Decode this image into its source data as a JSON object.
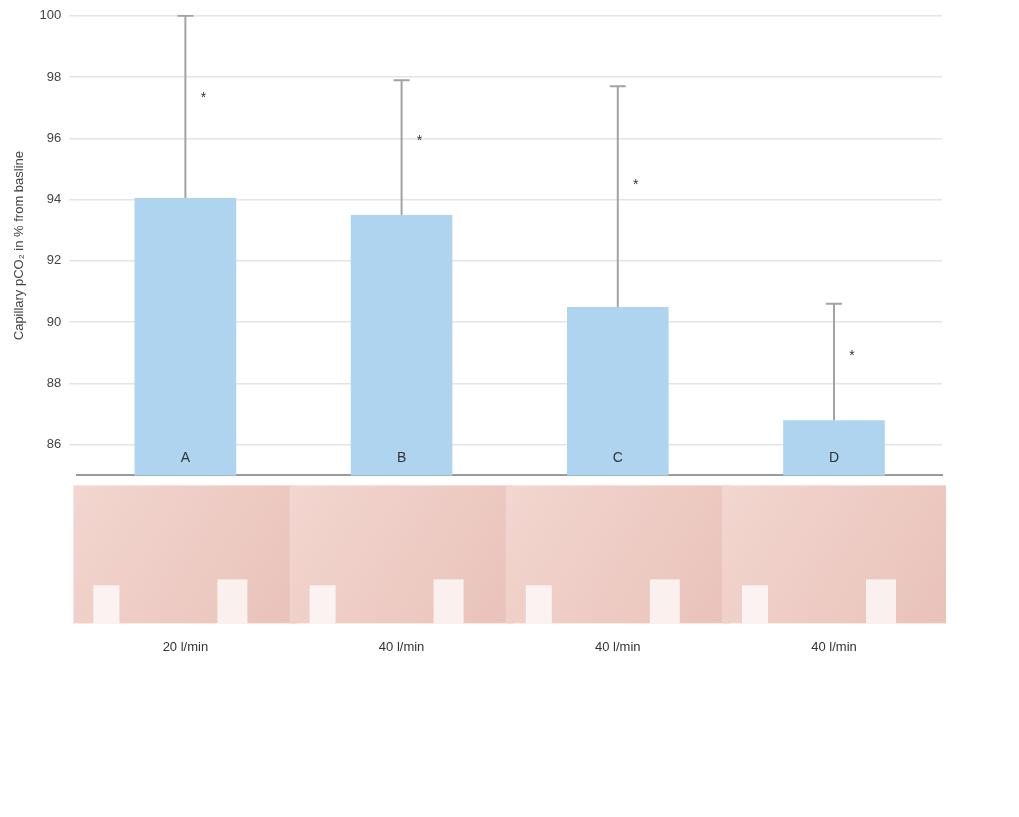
{
  "chart_data": {
    "type": "bar",
    "y_label": "Capillary pCO₂ in % from basline",
    "categories": [
      "20 l/min",
      "40 l/min",
      "40 l/min",
      "40 l/min"
    ],
    "bar_labels": [
      "A",
      "B",
      "C",
      "D"
    ],
    "values": [
      94.05,
      93.5,
      90.5,
      86.8
    ],
    "errors": [
      5.95,
      4.4,
      7.2,
      3.8
    ],
    "annotations": [
      "*",
      "*",
      "*",
      "*"
    ],
    "color": "#aed4ef",
    "ylim": [
      85,
      100
    ],
    "yticks": [
      86,
      88,
      90,
      92,
      94,
      96,
      98,
      100
    ],
    "grid": true
  }
}
